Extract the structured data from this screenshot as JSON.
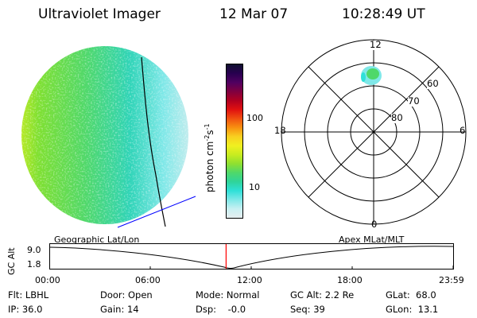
{
  "header": {
    "title": "Ultraviolet Imager",
    "date": "12 Mar 07",
    "time": "10:28:49 UT"
  },
  "colorbar": {
    "unit_label": "photon cm",
    "unit_exp1": "-2",
    "unit_s": "s",
    "unit_exp2": "-1",
    "ticks": [
      {
        "label": "100",
        "value": 100
      },
      {
        "label": "10",
        "value": 10
      }
    ],
    "colors": [
      "#e6eef0",
      "#c8f0f2",
      "#7fe8e8",
      "#2fe0d8",
      "#2fd49a",
      "#4fd86a",
      "#8fe030",
      "#c8ec20",
      "#f0f020",
      "#f8d020",
      "#f89010",
      "#f05010",
      "#e01010",
      "#b00020",
      "#800040",
      "#500060",
      "#280050",
      "#101030"
    ]
  },
  "polar": {
    "mlt_labels": {
      "top": "12",
      "left": "18",
      "right": "6",
      "bottom": "0"
    },
    "lat_labels": [
      "60",
      "70",
      "80"
    ]
  },
  "timeline": {
    "left_title": "Geographic Lat/Lon",
    "right_title": "Apex MLat/MLT",
    "ylabel": "GC Alt",
    "ytick_top": "9.0",
    "ytick_bottom": "1.8",
    "xticks": [
      "00:00",
      "06:00",
      "12:00",
      "18:00",
      "23:59"
    ],
    "marker_time": "10:28:49",
    "marker_color": "#ff0000"
  },
  "info": {
    "flt": "Flt: LBHL",
    "ip": "IP: 36.0",
    "door": "Door: Open",
    "gain": "Gain: 14",
    "mode": "Mode: Normal",
    "dsp": "Dsp:    -0.0",
    "gcalt": "GC Alt: 2.2 Re",
    "seq": "Seq: 39",
    "glat": "GLat:  68.0",
    "glon": "GLon:  13.1"
  }
}
